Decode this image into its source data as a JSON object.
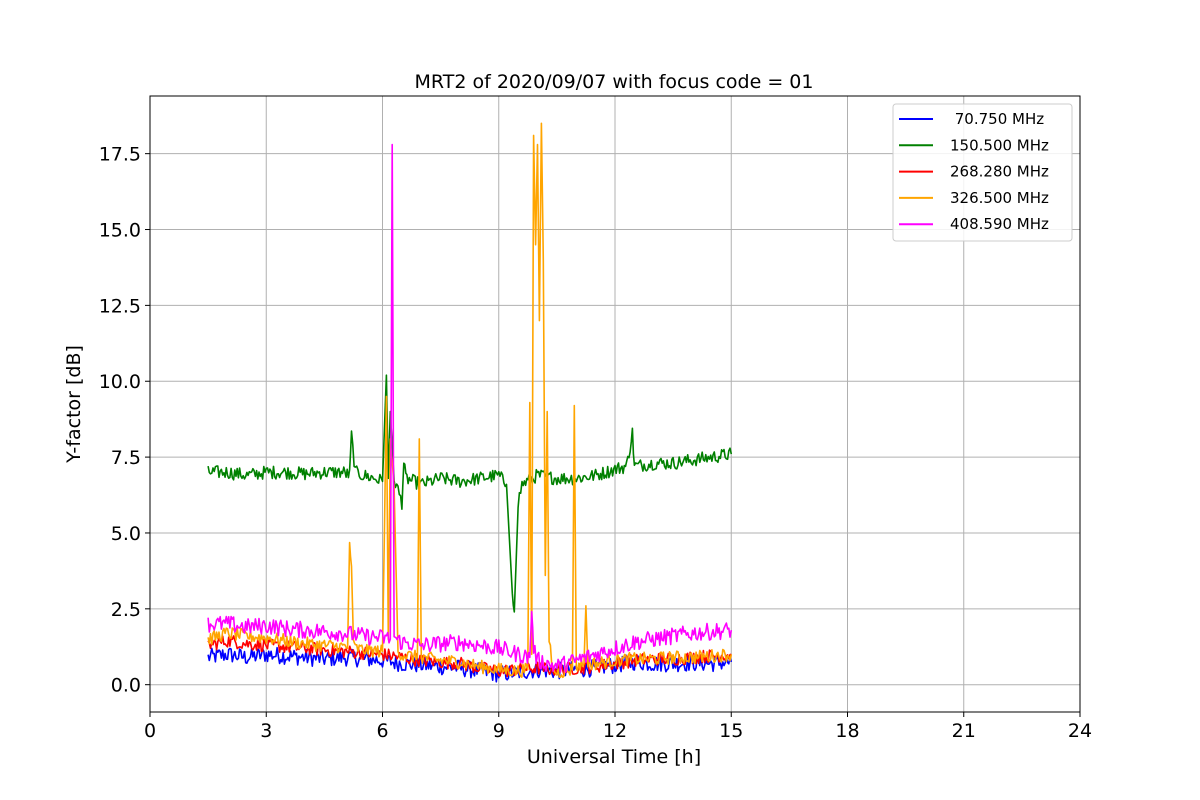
{
  "chart_data": {
    "type": "line",
    "title": "MRT2 of 2020/09/07 with focus code = 01",
    "xlabel": "Universal Time [h]",
    "ylabel": "Y-factor [dB]",
    "xlim": [
      0,
      24
    ],
    "ylim": [
      -0.9,
      19.4
    ],
    "xticks": [
      0,
      3,
      6,
      9,
      12,
      15,
      18,
      21,
      24
    ],
    "xtick_labels": [
      "0",
      "3",
      "6",
      "9",
      "12",
      "15",
      "18",
      "21",
      "24"
    ],
    "yticks": [
      0.0,
      2.5,
      5.0,
      7.5,
      10.0,
      12.5,
      15.0,
      17.5
    ],
    "ytick_labels": [
      "0.0",
      "2.5",
      "5.0",
      "7.5",
      "10.0",
      "12.5",
      "15.0",
      "17.5"
    ],
    "grid": true,
    "legend_position": "top-right",
    "series": [
      {
        "name": " 70.750 MHz",
        "color": "#0000ff",
        "x": [
          1.5,
          2.0,
          2.5,
          3.0,
          3.5,
          4.0,
          4.5,
          5.0,
          5.5,
          6.0,
          6.5,
          7.0,
          7.5,
          8.0,
          8.5,
          9.0,
          9.5,
          10.0,
          10.5,
          11.0,
          11.5,
          12.0,
          12.5,
          13.0,
          13.5,
          14.0,
          14.5,
          15.0
        ],
        "y": [
          0.9,
          1.0,
          0.9,
          1.0,
          0.95,
          0.9,
          0.85,
          0.9,
          0.85,
          0.8,
          0.7,
          0.65,
          0.6,
          0.55,
          0.45,
          0.35,
          0.4,
          0.5,
          0.45,
          0.5,
          0.55,
          0.65,
          0.75,
          0.7,
          0.7,
          0.72,
          0.7,
          0.75
        ]
      },
      {
        "name": "150.500 MHz",
        "color": "#008000",
        "x": [
          1.5,
          2.0,
          2.5,
          3.0,
          3.5,
          4.0,
          4.5,
          5.0,
          5.15,
          5.2,
          5.3,
          5.5,
          5.8,
          6.0,
          6.1,
          6.15,
          6.2,
          6.3,
          6.5,
          6.55,
          6.6,
          7.0,
          7.5,
          8.0,
          8.5,
          9.0,
          9.2,
          9.35,
          9.4,
          9.5,
          9.6,
          10.0,
          10.5,
          11.0,
          11.5,
          12.0,
          12.3,
          12.45,
          12.5,
          13.0,
          13.5,
          14.0,
          14.5,
          15.0
        ],
        "y": [
          7.0,
          7.0,
          6.9,
          7.0,
          7.0,
          6.95,
          7.0,
          7.0,
          6.9,
          8.2,
          7.0,
          6.9,
          6.8,
          6.7,
          10.2,
          6.8,
          9.0,
          6.8,
          6.0,
          7.3,
          6.8,
          6.6,
          6.8,
          6.7,
          6.8,
          6.9,
          6.6,
          3.2,
          2.4,
          6.0,
          6.6,
          6.9,
          6.8,
          6.8,
          6.9,
          7.1,
          7.2,
          8.3,
          7.2,
          7.3,
          7.3,
          7.4,
          7.5,
          7.6
        ]
      },
      {
        "name": "268.280 MHz",
        "color": "#ff0000",
        "x": [
          1.5,
          2.0,
          2.5,
          3.0,
          3.5,
          4.0,
          4.5,
          5.0,
          5.5,
          6.0,
          6.5,
          7.0,
          7.5,
          8.0,
          8.5,
          9.0,
          9.5,
          10.0,
          10.5,
          11.0,
          11.5,
          12.0,
          12.5,
          13.0,
          13.5,
          14.0,
          14.5,
          15.0
        ],
        "y": [
          1.3,
          1.45,
          1.35,
          1.3,
          1.25,
          1.2,
          1.15,
          1.1,
          1.05,
          1.0,
          0.9,
          0.8,
          0.75,
          0.7,
          0.55,
          0.45,
          0.5,
          0.55,
          0.5,
          0.55,
          0.6,
          0.7,
          0.8,
          0.85,
          0.85,
          0.9,
          0.95,
          1.0
        ]
      },
      {
        "name": "326.500 MHz",
        "color": "#ffa500",
        "x": [
          1.5,
          2.0,
          2.5,
          3.0,
          3.5,
          4.0,
          4.5,
          5.0,
          5.1,
          5.15,
          5.2,
          5.25,
          5.3,
          5.5,
          6.0,
          6.05,
          6.1,
          6.15,
          6.2,
          6.3,
          6.4,
          6.5,
          6.9,
          6.95,
          7.0,
          7.5,
          8.0,
          8.5,
          9.0,
          9.5,
          9.75,
          9.8,
          9.85,
          9.9,
          9.95,
          10.0,
          10.05,
          10.1,
          10.15,
          10.2,
          10.25,
          10.3,
          10.4,
          10.5,
          10.9,
          10.95,
          11.0,
          11.2,
          11.25,
          11.3,
          11.5,
          12.0,
          12.5,
          13.0,
          13.5,
          14.0,
          14.5,
          15.0
        ],
        "y": [
          1.5,
          1.7,
          1.6,
          1.55,
          1.45,
          1.35,
          1.3,
          1.25,
          1.2,
          4.7,
          3.9,
          1.3,
          1.2,
          1.15,
          1.1,
          5.0,
          9.5,
          1.5,
          8.0,
          6.5,
          1.1,
          1.0,
          0.9,
          8.1,
          0.9,
          0.8,
          0.75,
          0.6,
          0.5,
          0.45,
          0.5,
          9.3,
          1.0,
          18.1,
          14.5,
          17.8,
          12.0,
          18.5,
          14.0,
          3.6,
          9.0,
          1.5,
          0.5,
          0.4,
          0.5,
          9.2,
          0.6,
          0.7,
          2.6,
          0.7,
          0.7,
          0.8,
          0.85,
          0.85,
          0.9,
          0.9,
          0.95,
          1.0
        ]
      },
      {
        "name": "408.590 MHz",
        "color": "#ff00ff",
        "x": [
          1.5,
          2.0,
          2.5,
          3.0,
          3.5,
          4.0,
          4.5,
          5.0,
          5.5,
          6.0,
          6.2,
          6.25,
          6.3,
          6.35,
          6.5,
          7.0,
          7.5,
          8.0,
          8.5,
          9.0,
          9.5,
          9.8,
          9.85,
          9.9,
          10.0,
          10.5,
          11.0,
          11.5,
          12.0,
          12.5,
          13.0,
          13.5,
          14.0,
          14.5,
          15.0
        ],
        "y": [
          2.0,
          2.0,
          1.9,
          1.95,
          1.85,
          1.8,
          1.75,
          1.7,
          1.6,
          1.55,
          1.5,
          17.8,
          1.6,
          1.5,
          1.4,
          1.3,
          1.35,
          1.4,
          1.3,
          1.2,
          1.0,
          0.9,
          2.5,
          1.2,
          0.8,
          0.6,
          0.8,
          1.0,
          1.2,
          1.4,
          1.5,
          1.6,
          1.7,
          1.75,
          1.8
        ]
      }
    ]
  }
}
